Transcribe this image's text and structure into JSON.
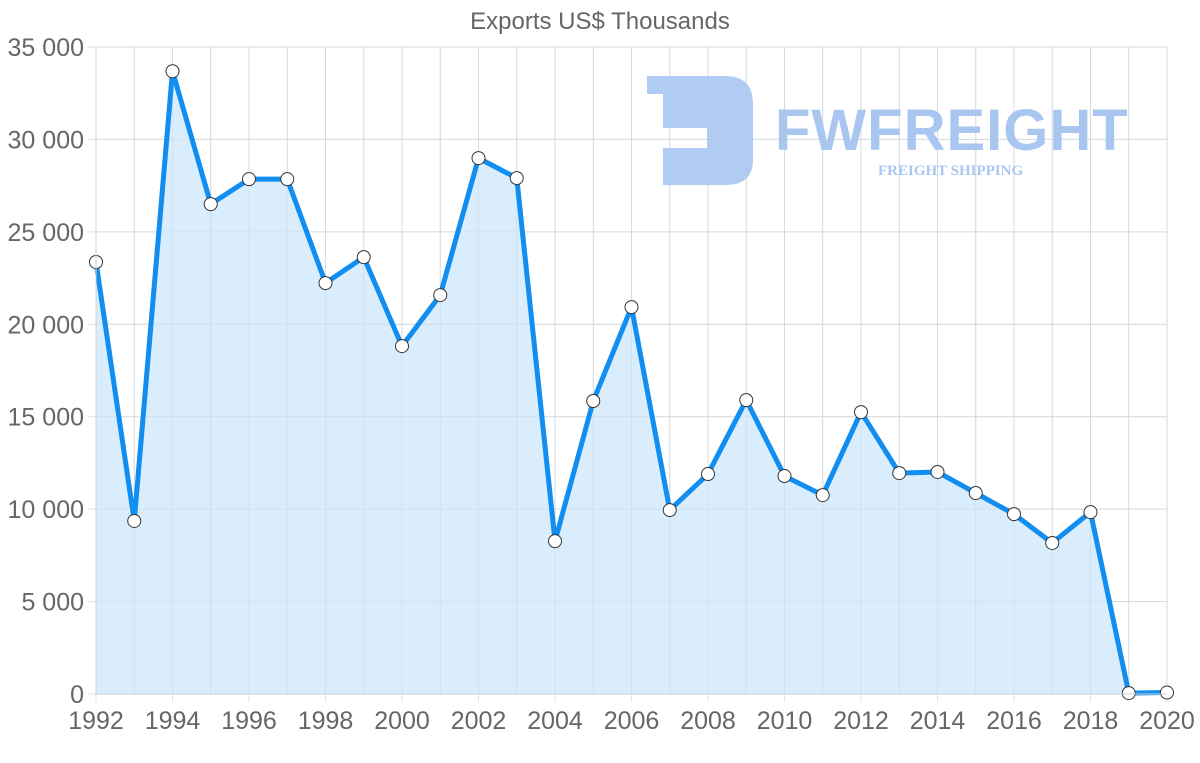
{
  "chart_data": {
    "type": "line",
    "title": "Exports US$ Thousands",
    "xlabel": "",
    "ylabel": "",
    "x": [
      1992,
      1993,
      1994,
      1995,
      1996,
      1997,
      1998,
      1999,
      2000,
      2001,
      2002,
      2003,
      2004,
      2005,
      2006,
      2007,
      2008,
      2009,
      2010,
      2011,
      2012,
      2013,
      2014,
      2015,
      2016,
      2017,
      2018,
      2019,
      2020
    ],
    "series": [
      {
        "name": "Exports US$ Thousands",
        "values": [
          23370,
          9360,
          33690,
          26500,
          27850,
          27850,
          22230,
          23630,
          18820,
          21580,
          28990,
          27910,
          8270,
          15850,
          20930,
          9950,
          11900,
          15900,
          11790,
          10760,
          15250,
          11950,
          12010,
          10870,
          9730,
          8170,
          9840,
          50,
          80
        ],
        "fill": true
      }
    ],
    "ylim": [
      0,
      35000
    ],
    "xlim": [
      1992,
      2020
    ],
    "yticks": [
      0,
      5000,
      10000,
      15000,
      20000,
      25000,
      30000,
      35000
    ],
    "ytick_labels": [
      "0",
      "5 000",
      "10 000",
      "15 000",
      "20 000",
      "25 000",
      "30 000",
      "35 000"
    ],
    "xticks": [
      1992,
      1994,
      1996,
      1998,
      2000,
      2002,
      2004,
      2006,
      2008,
      2010,
      2012,
      2014,
      2016,
      2018,
      2020
    ],
    "xtick_labels": [
      "1992",
      "1994",
      "1996",
      "1998",
      "2000",
      "2002",
      "2004",
      "2006",
      "2008",
      "2010",
      "2012",
      "2014",
      "2016",
      "2018",
      "2020"
    ],
    "grid": true,
    "legend": null
  },
  "colors": {
    "line": "#118ef0",
    "fill": "#d8ecfc",
    "grid": "#e2e2e2",
    "text": "#666666",
    "point_fill": "#ffffff",
    "point_stroke": "#333333",
    "watermark": "#a9c6f1"
  },
  "watermark": {
    "brand": "FWFREIGHT",
    "tagline": "FREIGHT SHIPPING",
    "icon": "fw-logo-icon"
  }
}
